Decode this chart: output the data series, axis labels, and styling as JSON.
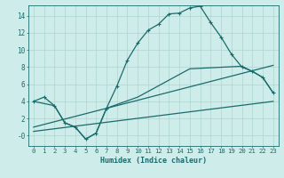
{
  "xlabel": "Humidex (Indice chaleur)",
  "background_color": "#ceecea",
  "grid_color": "#aed4d0",
  "line_color": "#1a6b6b",
  "spine_color": "#1a6b6b",
  "xlim": [
    -0.5,
    23.5
  ],
  "ylim": [
    -1.2,
    15.2
  ],
  "xticks": [
    0,
    1,
    2,
    3,
    4,
    5,
    6,
    7,
    8,
    9,
    10,
    11,
    12,
    13,
    14,
    15,
    16,
    17,
    18,
    19,
    20,
    21,
    22,
    23
  ],
  "yticks": [
    0,
    2,
    4,
    6,
    8,
    10,
    12,
    14
  ],
  "ytick_labels": [
    "-0",
    "2",
    "4",
    "6",
    "8",
    "10",
    "12",
    "14"
  ],
  "line1_x": [
    0,
    1,
    2,
    3,
    4,
    5,
    6,
    7,
    8,
    9,
    10,
    11,
    12,
    13,
    14,
    15,
    16,
    17,
    18,
    19,
    20,
    21,
    22,
    23
  ],
  "line1_y": [
    4.0,
    4.5,
    3.5,
    1.5,
    1.0,
    -0.4,
    0.3,
    3.2,
    5.8,
    8.8,
    10.8,
    12.3,
    13.0,
    14.2,
    14.3,
    14.9,
    15.1,
    13.2,
    11.5,
    9.5,
    8.0,
    7.5,
    6.8,
    5.0
  ],
  "line2_x": [
    0,
    2,
    3,
    4,
    5,
    6,
    7,
    10,
    15,
    20,
    21,
    22,
    23
  ],
  "line2_y": [
    4.0,
    3.5,
    1.5,
    1.0,
    -0.4,
    0.3,
    3.2,
    4.5,
    7.8,
    8.1,
    7.5,
    6.8,
    5.0
  ],
  "line3_x": [
    0,
    23
  ],
  "line3_y": [
    1.0,
    8.2
  ],
  "line4_x": [
    0,
    23
  ],
  "line4_y": [
    0.5,
    4.0
  ],
  "xlabel_fontsize": 6.0,
  "tick_fontsize": 5.2,
  "lw": 0.9
}
